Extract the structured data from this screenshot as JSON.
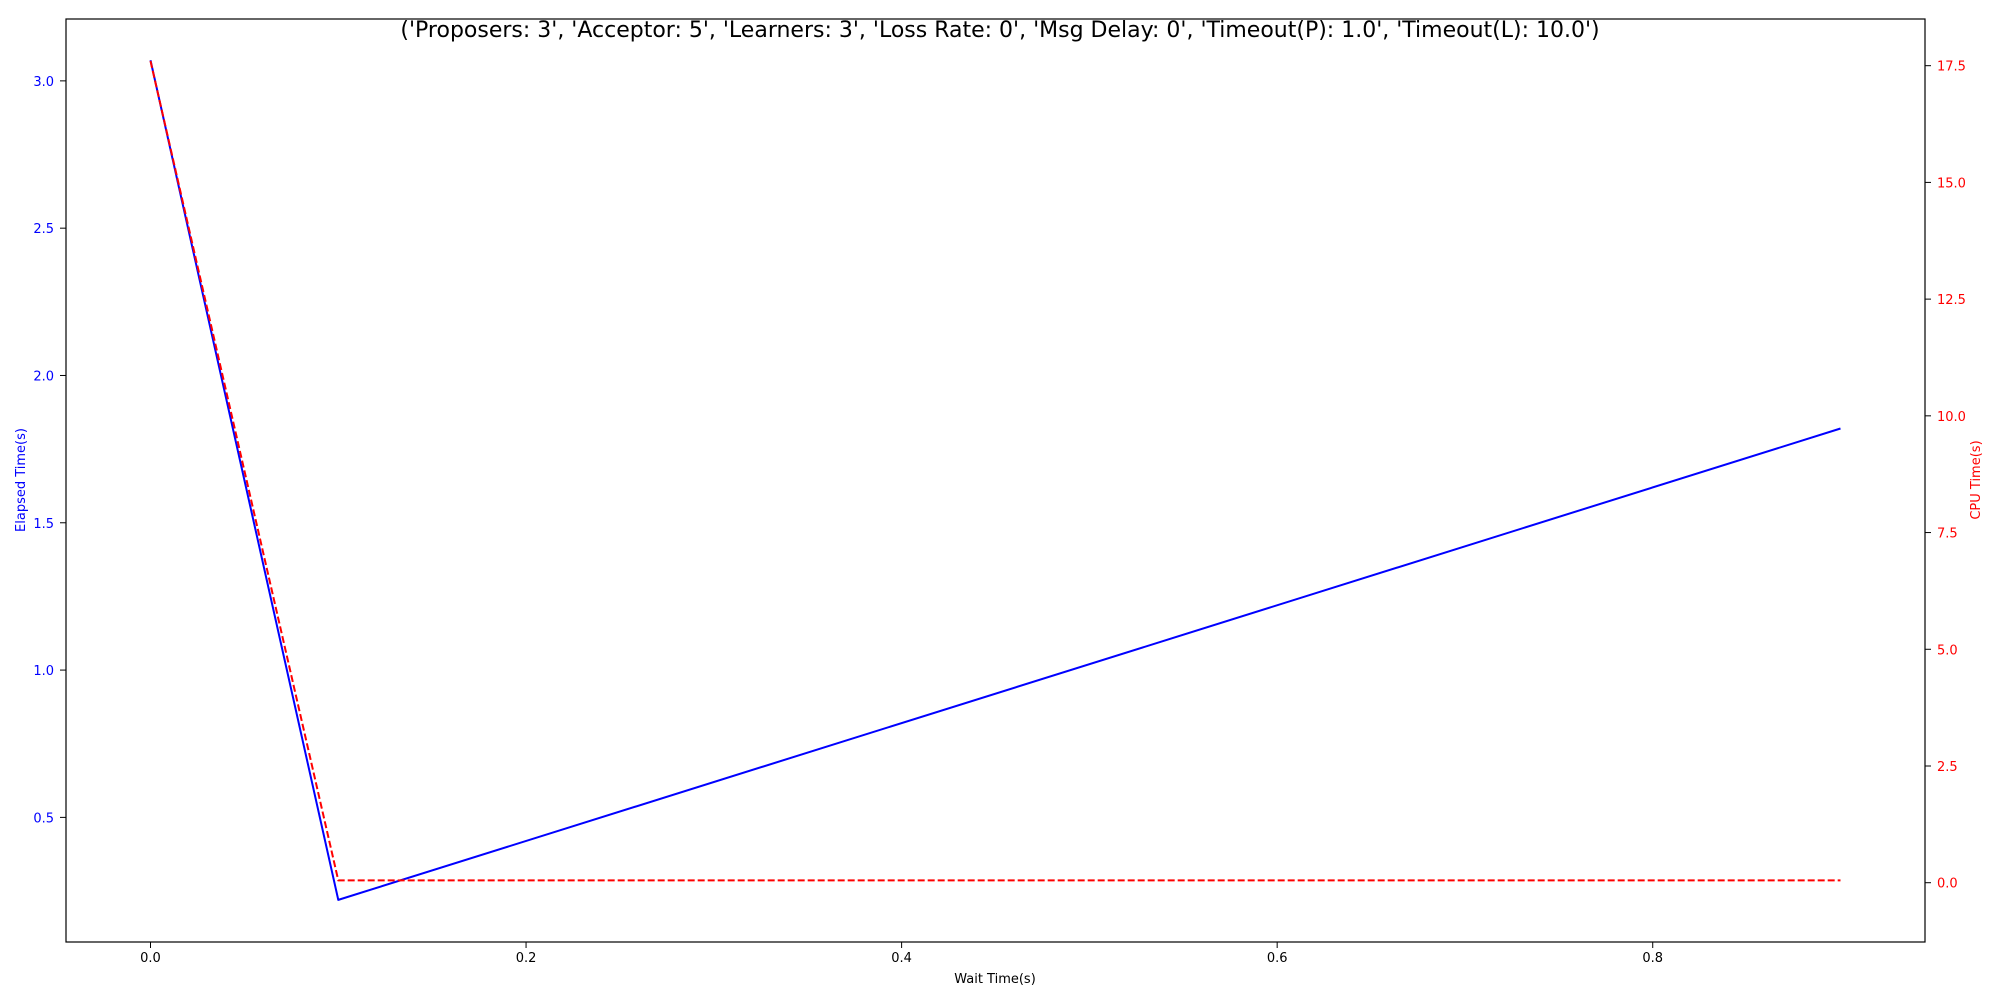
{
  "chart_data": {
    "type": "line",
    "title": "('Proposers: 3', 'Acceptor: 5', 'Learners: 3', 'Loss Rate: 0', 'Msg Delay: 0', 'Timeout(P): 1.0', 'Timeout(L): 10.0')",
    "xlabel": "Wait Time(s)",
    "ylabel_left": "Elapsed Time(s)",
    "ylabel_right": "CPU Time(s)",
    "xlim": [
      -0.045,
      0.945
    ],
    "ylim_left": [
      0.077,
      3.21
    ],
    "ylim_right": [
      -1.27,
      18.5
    ],
    "x_ticks": [
      0.0,
      0.2,
      0.4,
      0.6,
      0.8
    ],
    "x_tick_labels": [
      "0.0",
      "0.2",
      "0.4",
      "0.6",
      "0.8"
    ],
    "y_left_ticks": [
      0.5,
      1.0,
      1.5,
      2.0,
      2.5,
      3.0
    ],
    "y_left_tick_labels": [
      "0.5",
      "1.0",
      "1.5",
      "2.0",
      "2.5",
      "3.0"
    ],
    "y_right_ticks": [
      0.0,
      2.5,
      5.0,
      7.5,
      10.0,
      12.5,
      15.0,
      17.5
    ],
    "y_right_tick_labels": [
      "0.0",
      "2.5",
      "5.0",
      "7.5",
      "10.0",
      "12.5",
      "15.0",
      "17.5"
    ],
    "grid": false,
    "series": [
      {
        "axis": "left",
        "color": "#0000ff",
        "style": "solid",
        "x": [
          0.0,
          0.1,
          0.9
        ],
        "values": [
          3.07,
          0.22,
          1.82
        ]
      },
      {
        "axis": "right",
        "color": "#ff0000",
        "style": "dashed",
        "x": [
          0.0,
          0.1,
          0.9
        ],
        "values": [
          17.6,
          0.05,
          0.05
        ]
      }
    ]
  }
}
